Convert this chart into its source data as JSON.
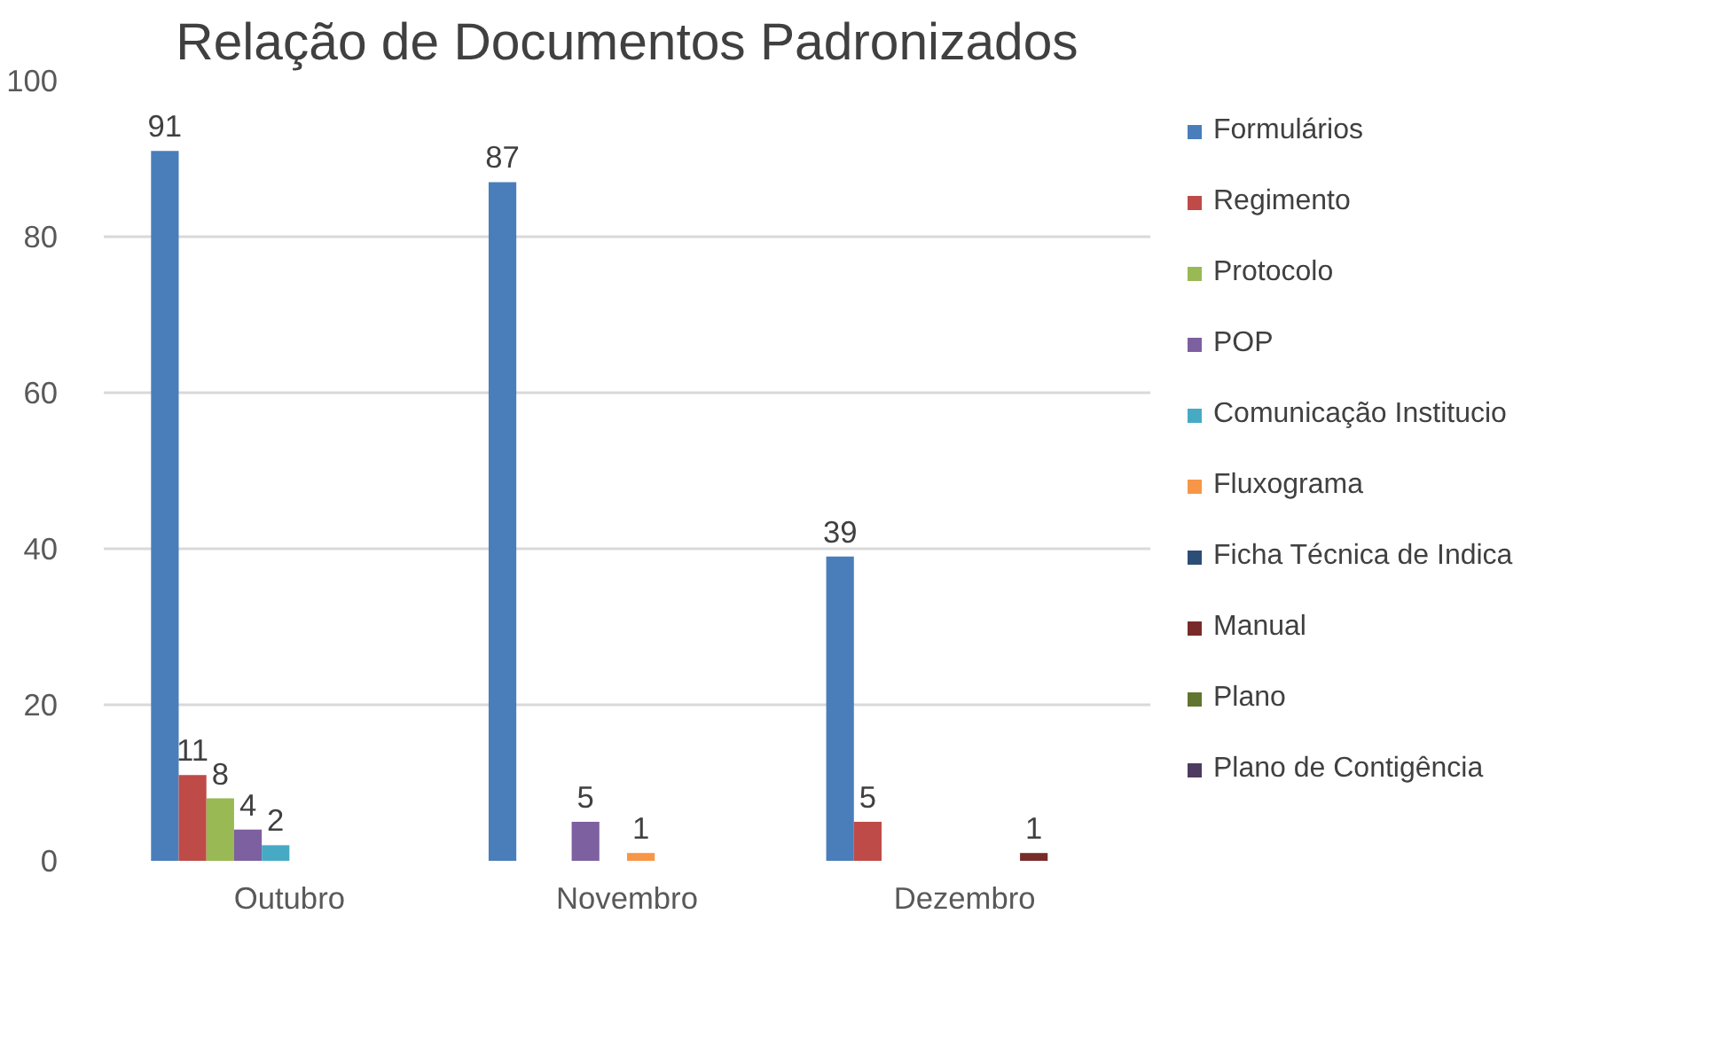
{
  "chart_data": {
    "type": "bar",
    "title": "Relação de Documentos Padronizados",
    "categories": [
      "Outubro",
      "Novembro",
      "Dezembro"
    ],
    "series": [
      {
        "name": "Formulários",
        "color": "#4a7ebb",
        "values": [
          91,
          87,
          39
        ]
      },
      {
        "name": "Regimento",
        "color": "#be4b48",
        "values": [
          11,
          null,
          5
        ]
      },
      {
        "name": "Protocolo",
        "color": "#98b954",
        "values": [
          8,
          null,
          null
        ]
      },
      {
        "name": "POP",
        "color": "#7d60a0",
        "values": [
          4,
          5,
          null
        ]
      },
      {
        "name": "Comunicação Institucio",
        "color": "#46aac5",
        "values": [
          2,
          null,
          null
        ]
      },
      {
        "name": "Fluxograma",
        "color": "#f79646",
        "values": [
          null,
          1,
          null
        ]
      },
      {
        "name": "Ficha Técnica de Indica",
        "color": "#2c4d75",
        "values": [
          null,
          null,
          null
        ]
      },
      {
        "name": "Manual",
        "color": "#772c2a",
        "values": [
          null,
          null,
          1
        ]
      },
      {
        "name": "Plano",
        "color": "#5f7530",
        "values": [
          null,
          null,
          null
        ]
      },
      {
        "name": "Plano de Contigência",
        "color": "#4d3b62",
        "values": [
          null,
          null,
          null
        ]
      }
    ],
    "ylim": [
      0,
      100
    ],
    "yticks": [
      0,
      20,
      40,
      60,
      80,
      100
    ],
    "grid": "y",
    "legend": "right",
    "data_labels": true
  }
}
